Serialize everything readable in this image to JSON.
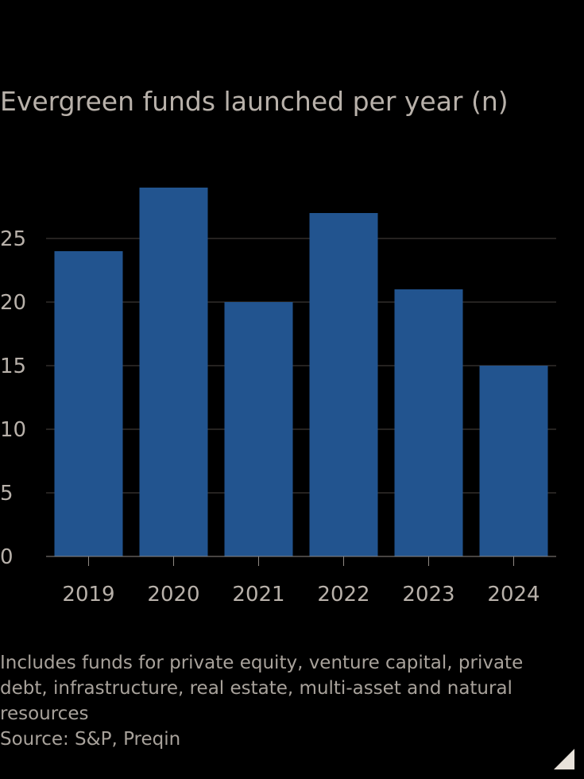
{
  "title": "Evergreen funds launched per year (n)",
  "note": "Includes funds for private equity, venture capital, private debt, infrastructure, real estate, multi-asset and natural resources",
  "source": "Source: S&P, Preqin",
  "colors": {
    "bar": "#22548f",
    "background": "#000000",
    "grid": "#4a4541",
    "text": "#b8b1aa"
  },
  "chart_data": {
    "type": "bar",
    "title": "Evergreen funds launched per year (n)",
    "categories": [
      "2019",
      "2020",
      "2021",
      "2022",
      "2023",
      "2024"
    ],
    "values": [
      24,
      29,
      20,
      27,
      21,
      15
    ],
    "ylim": [
      0,
      30
    ],
    "yticks": [
      0,
      5,
      10,
      15,
      20,
      25
    ],
    "grid": true,
    "xlabel": "",
    "ylabel": ""
  }
}
